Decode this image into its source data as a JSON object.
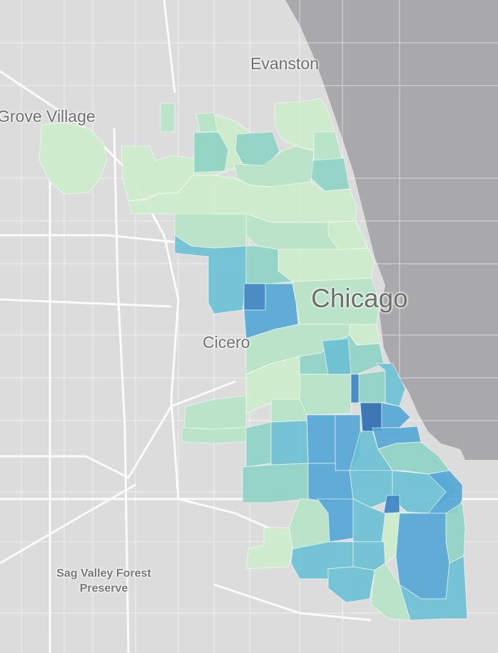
{
  "map": {
    "type": "choropleth",
    "place_labels": {
      "evanston": "Evanston",
      "grove_village": "Grove Village",
      "chicago": "Chicago",
      "cicero": "Cicero",
      "sag_valley": "Sag Valley Forest Preserve"
    },
    "colors": {
      "land": "#dcdcdc",
      "water": "#a9a9ab",
      "roads": "#ffffff",
      "scale": [
        "#cdeccb",
        "#b6e3c7",
        "#8fd3c5",
        "#6cc0d4",
        "#55a7d6",
        "#3d86c2"
      ]
    }
  }
}
